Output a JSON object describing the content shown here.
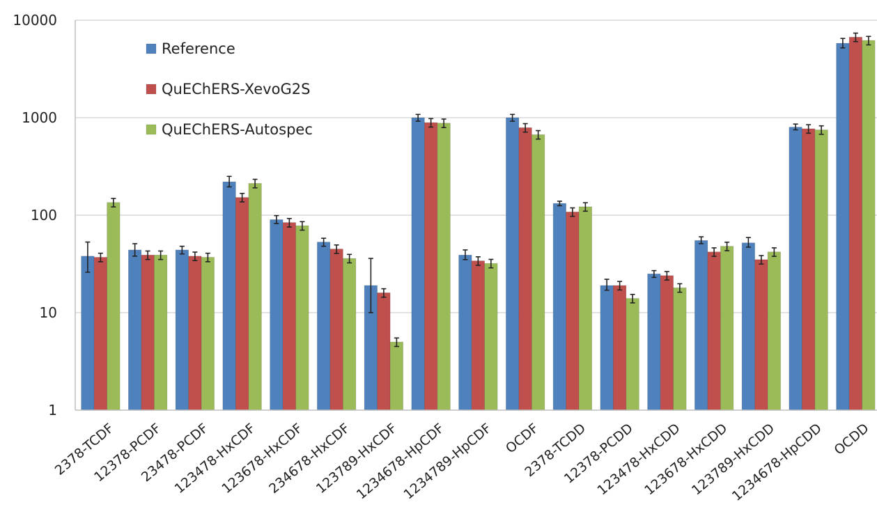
{
  "chart_data": {
    "type": "bar",
    "y_scale": "log",
    "ylim": [
      1,
      10000
    ],
    "grid": true,
    "legend_position": "top-left",
    "yticks": [
      "1",
      "10",
      "100",
      "1000",
      "10000"
    ],
    "categories": [
      "2378-TCDF",
      "12378-PCDF",
      "23478-PCDF",
      "123478-HxCDF",
      "123678-HxCDF",
      "234678-HxCDF",
      "123789-HxCDF",
      "1234678-HpCDF",
      "1234789-HpCDF",
      "OCDF",
      "2378-TCDD",
      "12378-PCDD",
      "123478-HxCDD",
      "123678-HxCDD",
      "123789-HxCDD",
      "1234678-HpCDD",
      "OCDD"
    ],
    "series": [
      {
        "name": "Reference",
        "color": "#4f81bd",
        "values": [
          38,
          44,
          44,
          220,
          90,
          53,
          19,
          1000,
          39,
          1000,
          132,
          19,
          25,
          55,
          52,
          800,
          5800
        ],
        "error_low": [
          26,
          38,
          40,
          195,
          82,
          48,
          10,
          920,
          35,
          920,
          125,
          17,
          23,
          51,
          47,
          750,
          5200
        ],
        "error_high": [
          53,
          51,
          48,
          250,
          99,
          58,
          36,
          1080,
          44,
          1080,
          139,
          22,
          27,
          60,
          59,
          860,
          6500
        ]
      },
      {
        "name": "QuEChERS-XevoG2S",
        "color": "#c0504d",
        "values": [
          37,
          39,
          38,
          152,
          84,
          45,
          16,
          890,
          34,
          790,
          108,
          19,
          24,
          42,
          35,
          770,
          6700
        ]
      },
      {
        "name": "QuEChERS-Autospec",
        "color": "#9bbb59",
        "values": [
          135,
          39,
          37,
          212,
          78,
          36,
          5,
          880,
          32,
          670,
          122,
          14,
          18,
          48,
          42,
          750,
          6200
        ]
      }
    ]
  }
}
